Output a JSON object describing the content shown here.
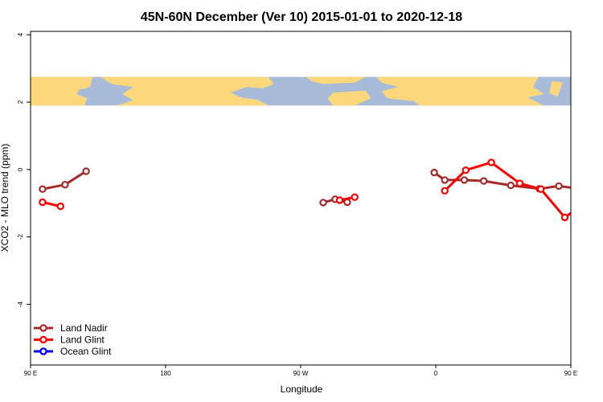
{
  "chart_data": {
    "type": "line",
    "title": "45N-60N December (Ver 10)   2015-01-01 to 2020-12-18",
    "xlabel": "Longitude",
    "ylabel": "XCO2 - MLO trend (ppm)",
    "xlim": [
      90,
      450
    ],
    "ylim": [
      -5.8,
      4.1
    ],
    "x_ticks": [
      {
        "value": 90,
        "label": "90 E"
      },
      {
        "value": 180,
        "label": "180"
      },
      {
        "value": 270,
        "label": "90 W"
      },
      {
        "value": 360,
        "label": "0"
      },
      {
        "value": 450,
        "label": "90 E"
      },
      {
        "value": 540,
        "label": "180"
      }
    ],
    "y_ticks": [
      {
        "value": 4,
        "label": "4"
      },
      {
        "value": 2,
        "label": "2"
      },
      {
        "value": 0,
        "label": "0"
      },
      {
        "value": -2,
        "label": "-2"
      },
      {
        "value": -4,
        "label": "-4"
      }
    ],
    "map_band": {
      "y_range": [
        1.9,
        2.75
      ],
      "ocean_color": "#a8bcd9",
      "land_color": "#fdd87a"
    },
    "legend_position": "bottom-left",
    "series": [
      {
        "name": "Land Nadir",
        "color": "#a52a2a",
        "segments": [
          [
            [
              98,
              -0.58
            ],
            [
              113,
              -0.45
            ],
            [
              127,
              -0.05
            ]
          ],
          [
            [
              285,
              -0.98
            ],
            [
              293,
              -0.88
            ],
            [
              301,
              -0.97
            ]
          ],
          [
            [
              359,
              -0.09
            ],
            [
              366,
              -0.31
            ],
            [
              379,
              -0.31
            ],
            [
              392,
              -0.34
            ],
            [
              410,
              -0.47
            ],
            [
              429,
              -0.57
            ],
            [
              442,
              -0.49
            ],
            [
              456,
              -0.57
            ],
            [
              470,
              -0.45
            ],
            [
              484,
              -0.07
            ]
          ]
        ]
      },
      {
        "name": "Land Glint",
        "color": "#ff0000",
        "segments": [
          [
            [
              98,
              -0.97
            ],
            [
              110,
              -1.09
            ]
          ],
          [
            [
              296,
              -0.91
            ],
            [
              306,
              -0.82
            ]
          ],
          [
            [
              366,
              -0.63
            ],
            [
              380,
              -0.02
            ],
            [
              397,
              0.21
            ],
            [
              416,
              -0.41
            ],
            [
              430,
              -0.58
            ],
            [
              446,
              -1.42
            ],
            [
              460,
              -0.98
            ],
            [
              472,
              -1.09
            ]
          ]
        ]
      },
      {
        "name": "Ocean Glint",
        "color": "#0000ff",
        "segments": []
      }
    ]
  }
}
